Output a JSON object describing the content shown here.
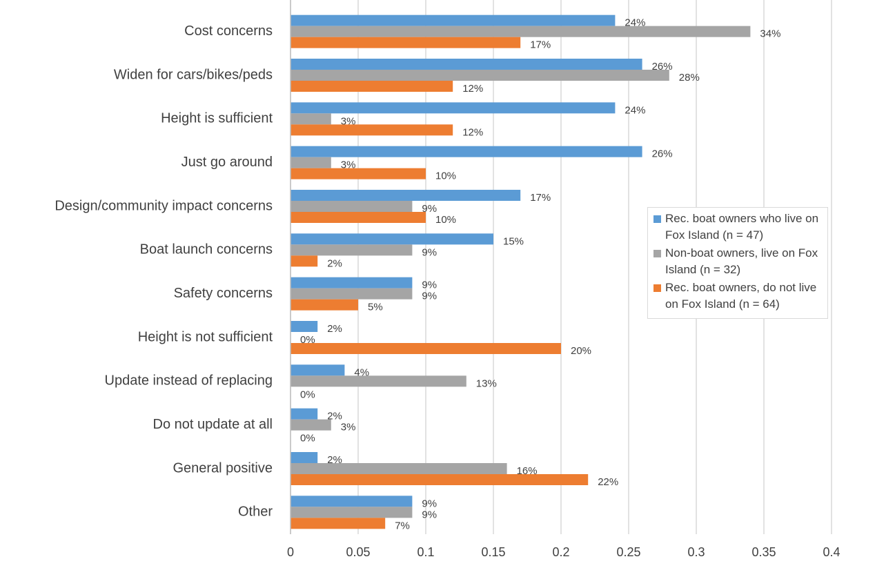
{
  "chart_data": {
    "type": "bar",
    "orientation": "horizontal",
    "categories": [
      "Cost concerns",
      "Widen for cars/bikes/peds",
      "Height is sufficient",
      "Just go around",
      "Design/community impact concerns",
      "Boat launch concerns",
      "Safety concerns",
      "Height is not sufficient",
      "Update instead of replacing",
      "Do not update at all",
      "General positive",
      "Other"
    ],
    "series": [
      {
        "name": "Rec. boat owners who live on Fox Island (n = 47)",
        "color": "#5b9bd5",
        "values": [
          0.24,
          0.26,
          0.24,
          0.26,
          0.17,
          0.15,
          0.09,
          0.02,
          0.04,
          0.02,
          0.02,
          0.09
        ],
        "value_labels": [
          "24%",
          "26%",
          "24%",
          "26%",
          "17%",
          "15%",
          "9%",
          "2%",
          "4%",
          "2%",
          "2%",
          "9%"
        ]
      },
      {
        "name": "Non-boat owners, live on Fox Island (n = 32)",
        "color": "#a5a5a5",
        "values": [
          0.34,
          0.28,
          0.03,
          0.03,
          0.09,
          0.09,
          0.09,
          0,
          0.13,
          0.03,
          0.16,
          0.09
        ],
        "value_labels": [
          "34%",
          "28%",
          "3%",
          "3%",
          "9%",
          "9%",
          "9%",
          "0%",
          "13%",
          "3%",
          "16%",
          "9%"
        ]
      },
      {
        "name": "Rec. boat owners, do not live on Fox Island (n = 64)",
        "color": "#ed7d31",
        "values": [
          0.17,
          0.12,
          0.12,
          0.1,
          0.1,
          0.02,
          0.05,
          0.2,
          0,
          0,
          0.22,
          0.07
        ],
        "value_labels": [
          "17%",
          "12%",
          "12%",
          "10%",
          "10%",
          "2%",
          "5%",
          "20%",
          "0%",
          "0%",
          "22%",
          "7%"
        ]
      }
    ],
    "xlim": [
      0,
      0.4
    ],
    "xticks": [
      0,
      0.05,
      0.1,
      0.15,
      0.2,
      0.25,
      0.3,
      0.35,
      0.4
    ],
    "grid": true,
    "legend": "right"
  }
}
